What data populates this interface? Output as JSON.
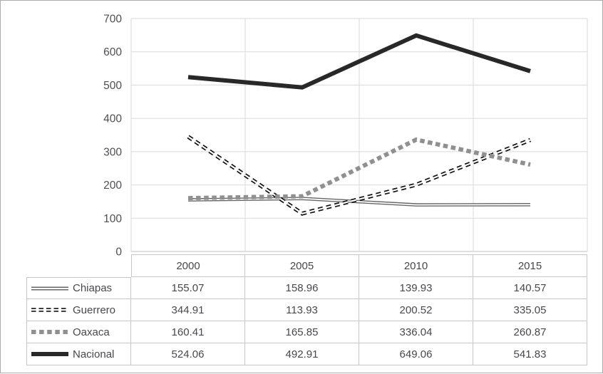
{
  "chart_data": {
    "type": "line",
    "title": "",
    "xlabel": "",
    "ylabel": "",
    "categories": [
      "2000",
      "2005",
      "2010",
      "2015"
    ],
    "y_ticks": [
      0,
      100,
      200,
      300,
      400,
      500,
      600,
      700
    ],
    "ylim": [
      0,
      700
    ],
    "grid": true,
    "legend_position": "table-left-column",
    "series": [
      {
        "name": "Chiapas",
        "values": [
          155.07,
          158.96,
          139.93,
          140.57
        ],
        "style": "double-solid",
        "color": "#666666"
      },
      {
        "name": "Guerrero",
        "values": [
          344.91,
          113.93,
          200.52,
          335.05
        ],
        "style": "double-dash",
        "color": "#121212"
      },
      {
        "name": "Oaxaca",
        "values": [
          160.41,
          165.85,
          336.04,
          260.87
        ],
        "style": "square-dot",
        "color": "#909090"
      },
      {
        "name": "Nacional",
        "values": [
          524.06,
          492.91,
          649.06,
          541.83
        ],
        "style": "thick-solid",
        "color": "#282828"
      }
    ]
  },
  "colors": {
    "background": "#ffffff",
    "frame_border": "#ababab",
    "gridline": "#dadada",
    "axis_line": "#c0c0c0",
    "table_border": "#c6c6c6",
    "text": "#48484c",
    "line_gap_fill": "#ffffff"
  }
}
